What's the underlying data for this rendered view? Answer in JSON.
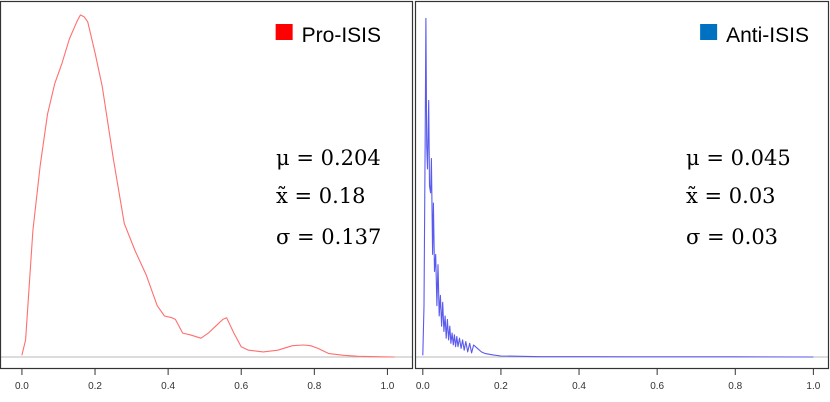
{
  "chart_data": [
    {
      "type": "area",
      "legend": "Pro-ISIS",
      "legend_position": "top-right",
      "color": "#ff0000",
      "curve_color": "#ff6f6f",
      "xlim": [
        -0.06,
        1.07
      ],
      "ylim": [
        0,
        1
      ],
      "ticks": [
        "0.0",
        "0.2",
        "0.4",
        "0.6",
        "0.8",
        "1.0"
      ],
      "tick_values": [
        0.0,
        0.2,
        0.4,
        0.6,
        0.8,
        1.0
      ],
      "stats": [
        "μ = 0.204",
        "x̃ = 0.18",
        "σ = 0.137"
      ],
      "density": {
        "x": [
          0.0,
          0.01,
          0.03,
          0.05,
          0.07,
          0.09,
          0.11,
          0.13,
          0.15,
          0.16,
          0.17,
          0.18,
          0.2,
          0.22,
          0.25,
          0.28,
          0.31,
          0.34,
          0.37,
          0.39,
          0.41,
          0.42,
          0.44,
          0.46,
          0.49,
          0.51,
          0.53,
          0.55,
          0.56,
          0.58,
          0.6,
          0.62,
          0.66,
          0.7,
          0.74,
          0.77,
          0.79,
          0.81,
          0.84,
          0.88,
          0.92,
          0.97,
          1.02
        ],
        "y": [
          0.005,
          0.05,
          0.37,
          0.56,
          0.71,
          0.8,
          0.86,
          0.93,
          0.98,
          1.0,
          0.995,
          0.98,
          0.89,
          0.79,
          0.58,
          0.39,
          0.31,
          0.24,
          0.15,
          0.12,
          0.115,
          0.11,
          0.07,
          0.065,
          0.055,
          0.07,
          0.09,
          0.11,
          0.115,
          0.07,
          0.03,
          0.02,
          0.015,
          0.02,
          0.033,
          0.035,
          0.033,
          0.025,
          0.01,
          0.005,
          0.002,
          0.001,
          0.0
        ]
      }
    },
    {
      "type": "area",
      "legend": "Anti-ISIS",
      "legend_position": "top-right",
      "color": "#0070c0",
      "curve_color": "#5a5aee",
      "xlim": [
        -0.02,
        1.04
      ],
      "ylim": [
        0,
        1
      ],
      "ticks": [
        "0.0",
        "0.2",
        "0.4",
        "0.6",
        "0.8",
        "1.0"
      ],
      "tick_values": [
        0.0,
        0.2,
        0.4,
        0.6,
        0.8,
        1.0
      ],
      "stats": [
        "μ = 0.045",
        "x̃ = 0.03",
        "σ = 0.03"
      ],
      "density": {
        "x": [
          0.0,
          0.003,
          0.006,
          0.008,
          0.01,
          0.012,
          0.015,
          0.017,
          0.02,
          0.022,
          0.025,
          0.027,
          0.03,
          0.033,
          0.036,
          0.039,
          0.042,
          0.045,
          0.048,
          0.051,
          0.054,
          0.057,
          0.06,
          0.063,
          0.066,
          0.069,
          0.072,
          0.075,
          0.078,
          0.081,
          0.084,
          0.087,
          0.09,
          0.094,
          0.098,
          0.102,
          0.106,
          0.11,
          0.115,
          0.12,
          0.125,
          0.13,
          0.14,
          0.15,
          0.16,
          0.18,
          0.2,
          0.25,
          0.3,
          0.4,
          0.6,
          0.8,
          1.0
        ],
        "y": [
          0.005,
          0.15,
          0.65,
          0.99,
          0.62,
          0.55,
          0.75,
          0.5,
          0.48,
          0.58,
          0.3,
          0.45,
          0.25,
          0.3,
          0.15,
          0.27,
          0.12,
          0.18,
          0.09,
          0.16,
          0.075,
          0.12,
          0.055,
          0.11,
          0.05,
          0.09,
          0.04,
          0.07,
          0.035,
          0.065,
          0.03,
          0.06,
          0.03,
          0.055,
          0.025,
          0.05,
          0.02,
          0.045,
          0.015,
          0.04,
          0.012,
          0.035,
          0.025,
          0.015,
          0.01,
          0.006,
          0.003,
          0.002,
          0.001,
          0.001,
          0.0005,
          0.0005,
          0.0
        ]
      }
    }
  ]
}
